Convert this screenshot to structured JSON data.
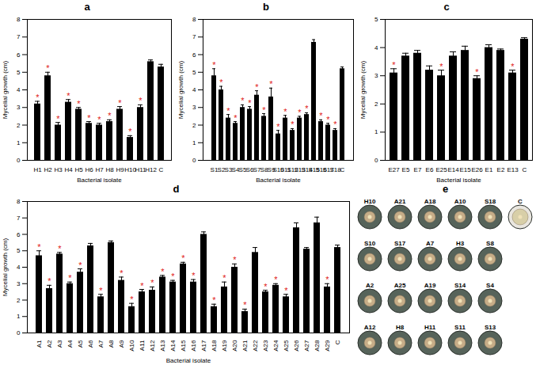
{
  "chart_data": [
    {
      "type": "bar",
      "title": "a",
      "x_label": "Bacterial isolate",
      "y_label": "Mycelial growth (cm)",
      "categories": [
        "H1",
        "H2",
        "H3",
        "H4",
        "H5",
        "H6",
        "H7",
        "H8",
        "H9",
        "H10",
        "H11",
        "H12",
        "C"
      ],
      "values": [
        3.2,
        4.8,
        2.0,
        3.3,
        2.9,
        2.1,
        2.0,
        2.2,
        2.9,
        1.3,
        3.0,
        5.6,
        5.3
      ],
      "errors": [
        0.15,
        0.2,
        0.15,
        0.15,
        0.1,
        0.1,
        0.1,
        0.1,
        0.15,
        0.1,
        0.15,
        0.1,
        0.15
      ],
      "color": "#000000",
      "ylim": [
        0,
        8
      ],
      "yticks": [
        0,
        1,
        2,
        3,
        4,
        5,
        6,
        7,
        8
      ],
      "annotations": {
        "text": "*",
        "color": "#e02020",
        "categories": [
          "H1",
          "H2",
          "H3",
          "H4",
          "H5",
          "H6",
          "H7",
          "H8",
          "H9",
          "H10",
          "H11"
        ]
      }
    },
    {
      "type": "bar",
      "title": "b",
      "x_label": "Bacterial isolate",
      "y_label": "Mycelial growth (cm)",
      "categories": [
        "S1",
        "S2",
        "S3",
        "S4",
        "S5",
        "S6",
        "S7",
        "S8",
        "S9",
        "S10",
        "S11",
        "S12",
        "S13",
        "S14",
        "S15",
        "S16",
        "S17",
        "S18",
        "C"
      ],
      "values": [
        4.8,
        4.0,
        2.4,
        2.1,
        3.0,
        2.9,
        3.7,
        2.5,
        3.6,
        1.5,
        2.4,
        1.7,
        2.4,
        2.6,
        6.7,
        2.2,
        2.0,
        1.7,
        5.2
      ],
      "errors": [
        0.4,
        0.2,
        0.2,
        0.1,
        0.15,
        0.15,
        0.25,
        0.15,
        0.5,
        0.2,
        0.15,
        0.1,
        0.1,
        0.1,
        0.15,
        0.1,
        0.1,
        0.1,
        0.1
      ],
      "color": "#000000",
      "ylim": [
        0,
        8
      ],
      "yticks": [
        0,
        1,
        2,
        3,
        4,
        5,
        6,
        7,
        8
      ],
      "annotations": {
        "text": "*",
        "color": "#e02020",
        "categories": [
          "S1",
          "S2",
          "S3",
          "S4",
          "S5",
          "S6",
          "S7",
          "S8",
          "S9",
          "S10",
          "S11",
          "S12",
          "S13",
          "S14",
          "S16",
          "S17",
          "S18"
        ]
      }
    },
    {
      "type": "bar",
      "title": "c",
      "x_label": "Bacterial isolate",
      "y_label": "Mycelial growth (cm)",
      "categories": [
        "E27",
        "E5",
        "E7",
        "E6",
        "E25",
        "E14",
        "E15",
        "E26",
        "E1",
        "E2",
        "E13",
        "C"
      ],
      "values": [
        3.1,
        3.7,
        3.8,
        3.2,
        3.0,
        3.7,
        3.9,
        2.9,
        4.0,
        3.9,
        3.1,
        4.3
      ],
      "errors": [
        0.15,
        0.1,
        0.1,
        0.15,
        0.2,
        0.15,
        0.15,
        0.1,
        0.1,
        0.05,
        0.1,
        0.05
      ],
      "color": "#000000",
      "ylim": [
        0,
        5
      ],
      "yticks": [
        0,
        1,
        2,
        3,
        4,
        5
      ],
      "annotations": {
        "text": "*",
        "color": "#e02020",
        "categories": [
          "E27",
          "E25",
          "E26",
          "E13"
        ]
      }
    },
    {
      "type": "bar",
      "title": "d",
      "x_label": "Bacterial isolate",
      "y_label": "Mycelial growth (cm)",
      "categories": [
        "A1",
        "A2",
        "A3",
        "A4",
        "A5",
        "A6",
        "A7",
        "A8",
        "A9",
        "A10",
        "A11",
        "A12",
        "A13",
        "A14",
        "A15",
        "A16",
        "A17",
        "A18",
        "A19",
        "A20",
        "A21",
        "A22",
        "A23",
        "A24",
        "A25",
        "A26",
        "A27",
        "A28",
        "A29",
        "C"
      ],
      "values": [
        4.7,
        2.7,
        4.8,
        3.0,
        3.7,
        5.3,
        2.2,
        5.5,
        3.2,
        1.6,
        2.5,
        2.6,
        3.4,
        3.1,
        4.2,
        3.1,
        6.0,
        1.6,
        2.8,
        4.0,
        1.3,
        4.9,
        2.5,
        2.9,
        2.2,
        6.4,
        5.1,
        6.7,
        2.8,
        5.2
      ],
      "errors": [
        0.3,
        0.2,
        0.1,
        0.1,
        0.2,
        0.15,
        0.15,
        0.1,
        0.2,
        0.2,
        0.15,
        0.2,
        0.1,
        0.1,
        0.1,
        0.15,
        0.15,
        0.15,
        0.3,
        0.2,
        0.15,
        0.3,
        0.1,
        0.1,
        0.15,
        0.3,
        0.1,
        0.35,
        0.2,
        0.15
      ],
      "color": "#000000",
      "ylim": [
        0,
        8
      ],
      "yticks": [
        0,
        1,
        2,
        3,
        4,
        5,
        6,
        7,
        8
      ],
      "annotations": {
        "text": "*",
        "color": "#e02020",
        "categories": [
          "A1",
          "A2",
          "A3",
          "A4",
          "A5",
          "A7",
          "A9",
          "A10",
          "A11",
          "A12",
          "A13",
          "A14",
          "A15",
          "A16",
          "A18",
          "A19",
          "A20",
          "A21",
          "A23",
          "A24",
          "A25",
          "A29"
        ]
      }
    }
  ],
  "panel_e": {
    "title": "e",
    "plates": [
      [
        "H10",
        "A21",
        "A18",
        "A10",
        "S18",
        "C"
      ],
      [
        "S10",
        "S17",
        "A7",
        "H3",
        "S8"
      ],
      [
        "A2",
        "A25",
        "A19",
        "S14",
        "S4"
      ],
      [
        "A12",
        "H8",
        "H11",
        "S11",
        "S13"
      ]
    ]
  }
}
